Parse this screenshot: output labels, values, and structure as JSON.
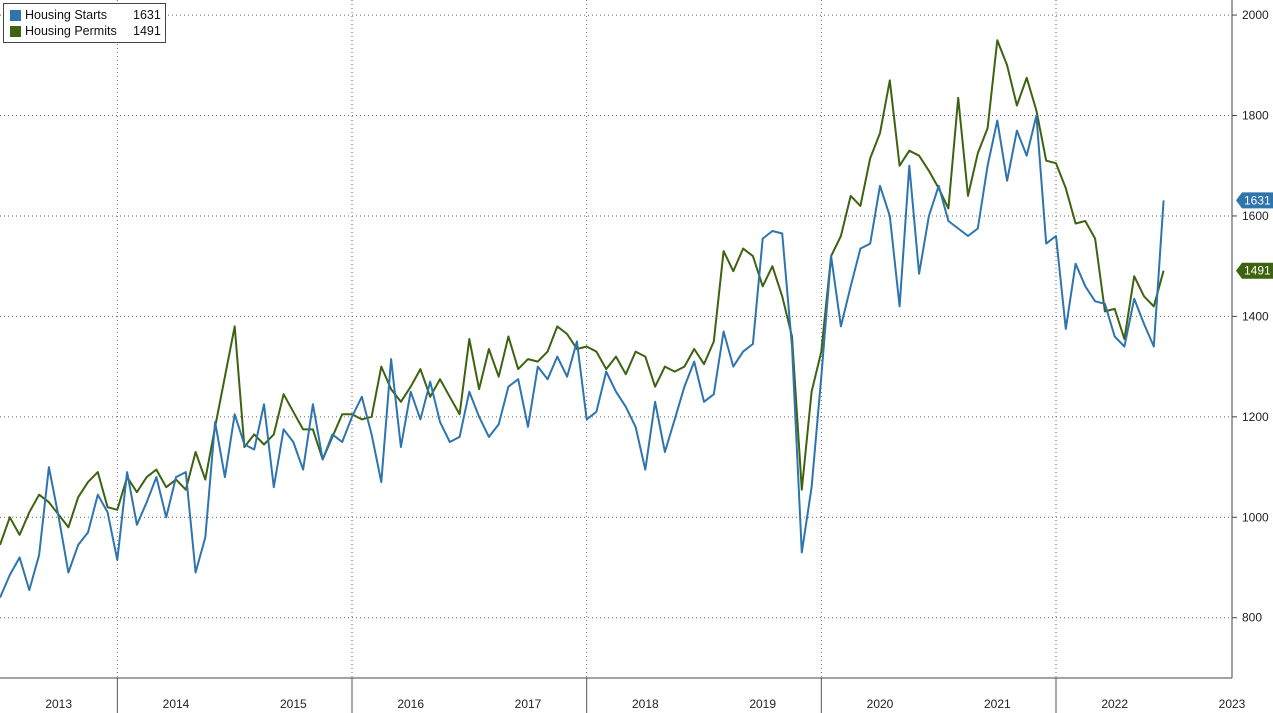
{
  "legend": {
    "items": [
      {
        "name": "Housing Starts",
        "last": "1631",
        "color": "#2e74ae"
      },
      {
        "name": "Housing Permits",
        "last": "1491",
        "color": "#3d6310"
      }
    ]
  },
  "chart_data": {
    "type": "line",
    "title": "",
    "xlabel": "",
    "ylabel": "",
    "x_start": "2013-01",
    "frequency": "monthly",
    "xlim": [
      "2013-01",
      "2023-07"
    ],
    "ylim": [
      680,
      2030
    ],
    "y_ticks": [
      800,
      1000,
      1200,
      1400,
      1600,
      1800,
      2000
    ],
    "x_tick_labels": [
      "2013",
      "2014",
      "2015",
      "2016",
      "2017",
      "2018",
      "2019",
      "2020",
      "2021",
      "2022",
      "2023"
    ],
    "grid": true,
    "legend_position": "top-left",
    "y_axis_side": "right",
    "series": [
      {
        "name": "Housing Starts",
        "color": "#2e74ae",
        "last_label": "1631",
        "values": [
          840,
          885,
          920,
          855,
          925,
          1100,
          1000,
          890,
          945,
          970,
          1045,
          1010,
          915,
          1090,
          985,
          1030,
          1080,
          1000,
          1080,
          1090,
          890,
          960,
          1190,
          1080,
          1205,
          1145,
          1135,
          1225,
          1060,
          1175,
          1150,
          1095,
          1225,
          1115,
          1165,
          1150,
          1200,
          1240,
          1165,
          1070,
          1315,
          1140,
          1250,
          1195,
          1270,
          1190,
          1150,
          1160,
          1250,
          1200,
          1160,
          1185,
          1260,
          1275,
          1180,
          1300,
          1275,
          1320,
          1280,
          1350,
          1195,
          1210,
          1290,
          1250,
          1220,
          1180,
          1095,
          1230,
          1130,
          1195,
          1260,
          1310,
          1230,
          1245,
          1370,
          1300,
          1330,
          1345,
          1555,
          1570,
          1565,
          1340,
          930,
          1060,
          1280,
          1520,
          1380,
          1460,
          1535,
          1545,
          1660,
          1600,
          1420,
          1700,
          1485,
          1600,
          1660,
          1590,
          1575,
          1560,
          1575,
          1700,
          1790,
          1670,
          1770,
          1720,
          1800,
          1545,
          1560,
          1375,
          1505,
          1460,
          1430,
          1425,
          1360,
          1340,
          1435,
          1385,
          1340,
          1631
        ]
      },
      {
        "name": "Housing Permits",
        "color": "#3d6310",
        "last_label": "1491",
        "values": [
          945,
          1000,
          965,
          1010,
          1045,
          1030,
          1005,
          980,
          1040,
          1070,
          1090,
          1020,
          1015,
          1080,
          1050,
          1080,
          1095,
          1060,
          1075,
          1055,
          1130,
          1075,
          1180,
          1280,
          1380,
          1140,
          1165,
          1145,
          1165,
          1245,
          1210,
          1175,
          1175,
          1115,
          1160,
          1205,
          1205,
          1195,
          1200,
          1300,
          1255,
          1230,
          1260,
          1295,
          1240,
          1275,
          1240,
          1205,
          1355,
          1255,
          1335,
          1280,
          1360,
          1295,
          1315,
          1310,
          1330,
          1380,
          1365,
          1335,
          1340,
          1330,
          1295,
          1320,
          1285,
          1330,
          1320,
          1260,
          1300,
          1290,
          1300,
          1335,
          1305,
          1350,
          1530,
          1490,
          1535,
          1520,
          1460,
          1500,
          1440,
          1360,
          1055,
          1250,
          1330,
          1520,
          1560,
          1640,
          1620,
          1715,
          1765,
          1870,
          1700,
          1730,
          1720,
          1690,
          1655,
          1615,
          1835,
          1640,
          1725,
          1775,
          1950,
          1900,
          1820,
          1875,
          1810,
          1710,
          1705,
          1655,
          1585,
          1590,
          1555,
          1410,
          1415,
          1355,
          1480,
          1440,
          1420,
          1491
        ]
      }
    ]
  }
}
